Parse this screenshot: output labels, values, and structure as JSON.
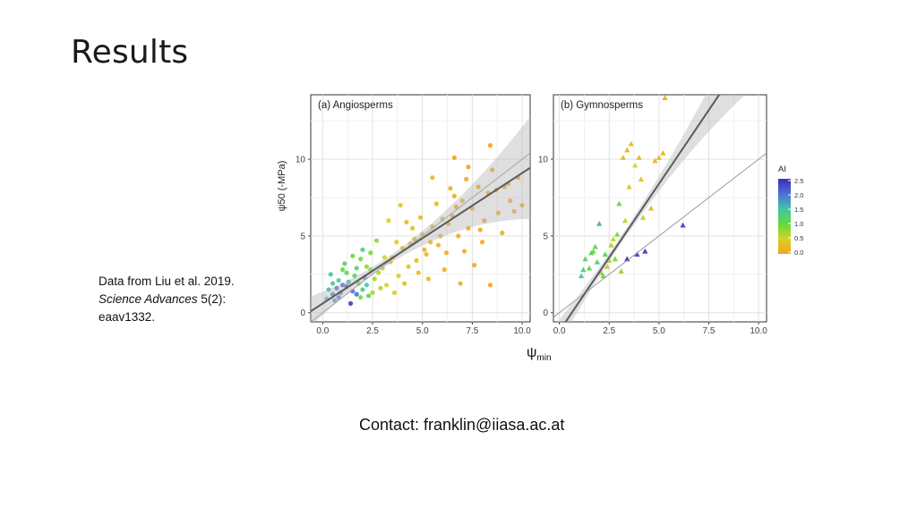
{
  "slide": {
    "title": "Results",
    "citation_line1": "Data from Liu et al. 2019.",
    "citation_journal": "Science Advances",
    "citation_volume": " 5(2):",
    "citation_line3": "eaav1332.",
    "x_symbol": "ψ",
    "x_subscript": "min",
    "contact": "Contact: franklin@iiasa.ac.at"
  },
  "chart_data": [
    {
      "type": "scatter",
      "title": "(a) Angiosperms",
      "ylabel": "ψ50 (-MPa)",
      "xlim": [
        -0.6,
        10.4
      ],
      "ylim": [
        -0.6,
        14.2
      ],
      "xticks": [
        "0.0",
        "2.5",
        "5.0",
        "7.5",
        "10.0"
      ],
      "yticks": [
        "0",
        "5",
        "10"
      ],
      "grid": true,
      "one_to_one_line": true,
      "fit": {
        "intercept": 0.6,
        "slope": 0.85
      },
      "points": [
        [
          0.3,
          1.5,
          1.6
        ],
        [
          0.5,
          1.2,
          1.9
        ],
        [
          0.8,
          2.1,
          1.4
        ],
        [
          1.0,
          1.8,
          2.2
        ],
        [
          1.2,
          2.6,
          1.1
        ],
        [
          0.6,
          0.8,
          1.7
        ],
        [
          1.5,
          1.4,
          2.0
        ],
        [
          1.7,
          2.9,
          1.3
        ],
        [
          1.9,
          1.0,
          0.9
        ],
        [
          2.1,
          2.3,
          1.8
        ],
        [
          0.4,
          2.5,
          1.5
        ],
        [
          1.1,
          3.2,
          1.2
        ],
        [
          1.4,
          0.6,
          2.4
        ],
        [
          1.8,
          1.9,
          1.0
        ],
        [
          2.2,
          3.0,
          0.8
        ],
        [
          0.7,
          1.6,
          2.1
        ],
        [
          1.3,
          2.0,
          1.6
        ],
        [
          1.6,
          2.4,
          1.2
        ],
        [
          2.0,
          1.5,
          1.4
        ],
        [
          2.4,
          2.8,
          0.9
        ],
        [
          0.9,
          1.3,
          1.8
        ],
        [
          1.0,
          2.8,
          1.0
        ],
        [
          2.3,
          1.1,
          1.1
        ],
        [
          1.2,
          1.7,
          2.3
        ],
        [
          0.5,
          1.9,
          1.4
        ],
        [
          2.6,
          2.2,
          0.7
        ],
        [
          3.0,
          2.9,
          0.6
        ],
        [
          3.2,
          1.8,
          0.5
        ],
        [
          3.5,
          3.6,
          0.4
        ],
        [
          3.8,
          2.4,
          0.5
        ],
        [
          4.0,
          4.2,
          0.3
        ],
        [
          4.3,
          3.0,
          0.4
        ],
        [
          4.6,
          4.8,
          0.3
        ],
        [
          4.8,
          2.6,
          0.3
        ],
        [
          5.0,
          5.1,
          0.2
        ],
        [
          5.2,
          3.8,
          0.3
        ],
        [
          5.5,
          5.6,
          0.2
        ],
        [
          5.8,
          4.4,
          0.2
        ],
        [
          6.0,
          6.1,
          0.2
        ],
        [
          6.2,
          3.9,
          0.1
        ],
        [
          6.5,
          6.3,
          0.1
        ],
        [
          6.8,
          5.0,
          0.1
        ],
        [
          7.0,
          7.3,
          0.1
        ],
        [
          7.3,
          5.5,
          0.1
        ],
        [
          7.5,
          6.8,
          0.1
        ],
        [
          7.8,
          8.2,
          0.0
        ],
        [
          8.0,
          4.6,
          0.1
        ],
        [
          8.3,
          7.8,
          0.0
        ],
        [
          8.5,
          9.3,
          0.0
        ],
        [
          8.8,
          6.5,
          0.0
        ],
        [
          9.0,
          5.2,
          0.1
        ],
        [
          9.3,
          8.4,
          0.0
        ],
        [
          9.6,
          6.6,
          0.0
        ],
        [
          10.0,
          7.0,
          0.0
        ],
        [
          6.6,
          10.1,
          0.0
        ],
        [
          7.3,
          9.5,
          0.0
        ],
        [
          8.4,
          10.9,
          0.0
        ],
        [
          3.3,
          6.0,
          0.5
        ],
        [
          2.7,
          4.7,
          0.8
        ],
        [
          2.9,
          1.6,
          0.6
        ],
        [
          3.6,
          1.3,
          0.4
        ],
        [
          4.1,
          1.9,
          0.3
        ],
        [
          4.5,
          5.5,
          0.3
        ],
        [
          4.9,
          6.2,
          0.2
        ],
        [
          5.3,
          2.2,
          0.2
        ],
        [
          5.7,
          7.1,
          0.2
        ],
        [
          6.1,
          2.8,
          0.1
        ],
        [
          6.4,
          8.1,
          0.1
        ],
        [
          6.9,
          1.9,
          0.1
        ],
        [
          7.1,
          4.0,
          0.1
        ],
        [
          7.6,
          3.1,
          0.1
        ],
        [
          8.1,
          6.0,
          0.0
        ],
        [
          8.4,
          1.8,
          0.0
        ],
        [
          9.1,
          8.2,
          0.0
        ],
        [
          2.0,
          4.1,
          1.3
        ],
        [
          1.5,
          3.7,
          1.0
        ],
        [
          3.9,
          7.0,
          0.4
        ],
        [
          4.4,
          4.5,
          0.3
        ],
        [
          5.5,
          8.8,
          0.2
        ],
        [
          6.3,
          5.8,
          0.1
        ],
        [
          7.9,
          5.4,
          0.1
        ],
        [
          3.4,
          3.3,
          0.5
        ],
        [
          2.5,
          1.3,
          0.7
        ],
        [
          2.8,
          2.6,
          0.6
        ],
        [
          0.2,
          0.9,
          1.5
        ],
        [
          0.8,
          1.0,
          1.9
        ],
        [
          1.9,
          3.5,
          0.9
        ],
        [
          2.2,
          1.8,
          1.5
        ],
        [
          3.7,
          4.6,
          0.4
        ],
        [
          4.2,
          5.9,
          0.3
        ],
        [
          5.1,
          4.1,
          0.2
        ],
        [
          5.9,
          5.0,
          0.2
        ],
        [
          6.7,
          6.9,
          0.1
        ],
        [
          7.2,
          8.7,
          0.1
        ],
        [
          8.7,
          8.0,
          0.0
        ],
        [
          9.4,
          7.3,
          0.0
        ],
        [
          1.7,
          1.2,
          2.0
        ],
        [
          2.4,
          3.9,
          0.9
        ],
        [
          3.1,
          3.6,
          0.5
        ],
        [
          4.7,
          3.4,
          0.3
        ],
        [
          5.4,
          4.6,
          0.2
        ],
        [
          6.6,
          7.6,
          0.1
        ],
        [
          9.8,
          8.8,
          0.0
        ]
      ]
    },
    {
      "type": "scatter",
      "title": "(b) Gymnosperms",
      "xlim": [
        -0.3,
        10.4
      ],
      "ylim": [
        -0.6,
        14.2
      ],
      "xticks": [
        "0.0",
        "2.5",
        "5.0",
        "7.5",
        "10.0"
      ],
      "yticks": [
        "0",
        "5",
        "10"
      ],
      "grid": true,
      "one_to_one_line": true,
      "fit": {
        "intercept": -1.2,
        "slope": 1.92
      },
      "points": [
        [
          1.1,
          2.4,
          1.5
        ],
        [
          1.3,
          3.5,
          1.2
        ],
        [
          1.5,
          2.9,
          1.0
        ],
        [
          1.7,
          4.0,
          0.9
        ],
        [
          1.9,
          3.3,
          1.3
        ],
        [
          2.0,
          5.8,
          1.6
        ],
        [
          2.1,
          2.6,
          0.8
        ],
        [
          2.3,
          3.8,
          1.1
        ],
        [
          2.4,
          3.0,
          0.6
        ],
        [
          2.6,
          4.4,
          0.7
        ],
        [
          2.8,
          3.5,
          0.9
        ],
        [
          3.0,
          7.1,
          1.0
        ],
        [
          3.2,
          10.1,
          0.3
        ],
        [
          3.4,
          10.6,
          0.2
        ],
        [
          3.5,
          8.2,
          0.4
        ],
        [
          3.6,
          11.0,
          0.3
        ],
        [
          3.8,
          9.6,
          0.5
        ],
        [
          4.0,
          10.1,
          0.2
        ],
        [
          4.2,
          6.2,
          0.6
        ],
        [
          4.6,
          6.8,
          0.3
        ],
        [
          4.8,
          9.9,
          0.2
        ],
        [
          5.0,
          10.1,
          0.3
        ],
        [
          5.2,
          10.4,
          0.2
        ],
        [
          5.3,
          14.0,
          0.1
        ],
        [
          3.4,
          3.5,
          2.5
        ],
        [
          3.9,
          3.8,
          2.3
        ],
        [
          4.3,
          4.0,
          2.4
        ],
        [
          6.2,
          5.7,
          2.3
        ],
        [
          2.5,
          3.4,
          0.7
        ],
        [
          1.8,
          4.3,
          1.1
        ],
        [
          2.9,
          5.1,
          0.9
        ],
        [
          1.2,
          2.8,
          1.4
        ],
        [
          2.7,
          4.8,
          0.5
        ],
        [
          3.1,
          2.7,
          0.8
        ],
        [
          1.6,
          3.9,
          1.2
        ],
        [
          2.2,
          2.4,
          1.0
        ],
        [
          3.3,
          6.0,
          0.6
        ],
        [
          4.1,
          8.7,
          0.4
        ]
      ]
    }
  ],
  "colorbar": {
    "title": "AI",
    "ticks": [
      "2.5",
      "2.0",
      "1.5",
      "1.0",
      "0.5",
      "0.0"
    ],
    "colors": [
      "#3d2fb8",
      "#4a6fd8",
      "#45c4a6",
      "#5fdb3e",
      "#d6d125",
      "#f5a21c"
    ]
  }
}
